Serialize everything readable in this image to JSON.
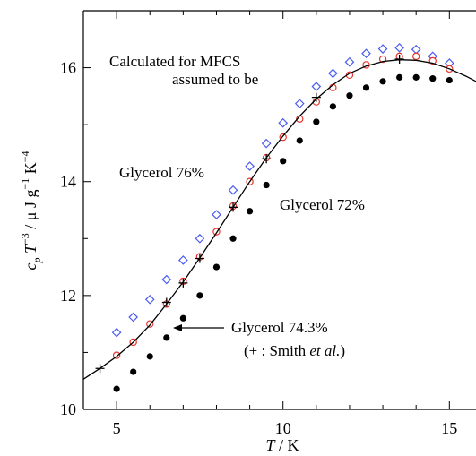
{
  "chart_data": {
    "type": "scatter",
    "xlabel_parts": [
      "T",
      " / K"
    ],
    "ylabel_parts": [
      "c",
      "p",
      " T",
      "−3",
      " / μ J g",
      "−1",
      " K",
      "−4"
    ],
    "annotations": [
      "Calculated for MFCS",
      "assumed to be",
      "Glycerol 76%",
      "Glycerol 72%",
      "Glycerol 74.3%",
      "(+ : Smith ",
      "et al.",
      ")"
    ],
    "xlim": [
      4,
      15.8
    ],
    "ylim": [
      10,
      17
    ],
    "xticks": [
      5,
      10,
      15
    ],
    "yticks": [
      10,
      12,
      14,
      16
    ],
    "xticks_minor": [
      6,
      7,
      8,
      9,
      11,
      12,
      13,
      14
    ],
    "yticks_minor": [
      11,
      13,
      15
    ],
    "series": [
      {
        "marker": "diamond",
        "color": "#4a5cf0",
        "x": [
          5,
          5.5,
          6,
          6.5,
          7,
          7.5,
          8,
          8.5,
          9,
          9.5,
          10,
          10.5,
          11,
          11.5,
          12,
          12.5,
          13,
          13.5,
          14,
          14.5,
          15
        ],
        "values": [
          11.35,
          11.62,
          11.93,
          12.28,
          12.62,
          13.0,
          13.42,
          13.85,
          14.27,
          14.67,
          15.03,
          15.37,
          15.67,
          15.9,
          16.1,
          16.25,
          16.33,
          16.35,
          16.32,
          16.2,
          16.08
        ]
      },
      {
        "marker": "circle-open",
        "color": "#e8332c",
        "x": [
          5,
          5.5,
          6,
          6.5,
          7,
          7.5,
          8,
          8.5,
          9,
          9.5,
          10,
          10.5,
          11,
          11.5,
          12,
          12.5,
          13,
          13.5,
          14,
          14.5,
          15
        ],
        "values": [
          10.95,
          11.18,
          11.5,
          11.85,
          12.25,
          12.68,
          13.12,
          13.57,
          14.0,
          14.42,
          14.78,
          15.1,
          15.4,
          15.65,
          15.87,
          16.05,
          16.15,
          16.2,
          16.2,
          16.12,
          15.98
        ]
      },
      {
        "marker": "circle-filled",
        "color": "#000000",
        "x": [
          5,
          5.5,
          6,
          6.5,
          7,
          7.5,
          8,
          8.5,
          9,
          9.5,
          10,
          10.5,
          11,
          11.5,
          12,
          12.5,
          13,
          13.5,
          14,
          14.5,
          15
        ],
        "values": [
          10.36,
          10.66,
          10.93,
          11.26,
          11.6,
          12.0,
          12.5,
          13.0,
          13.48,
          13.94,
          14.36,
          14.72,
          15.05,
          15.32,
          15.51,
          15.65,
          15.76,
          15.83,
          15.83,
          15.81,
          15.78
        ]
      },
      {
        "marker": "plus",
        "color": "#000000",
        "x": [
          4.5,
          6.5,
          7,
          7.5,
          8.5,
          9.5,
          11,
          13.5
        ],
        "values": [
          10.72,
          11.88,
          12.22,
          12.65,
          13.55,
          14.4,
          15.48,
          16.15
        ]
      },
      {
        "marker": "line",
        "color": "#000000",
        "x": [
          4,
          4.5,
          5,
          5.5,
          6,
          6.5,
          7,
          7.5,
          8,
          8.5,
          9,
          9.5,
          10,
          10.5,
          11,
          11.5,
          12,
          12.5,
          13,
          13.5,
          14,
          14.5,
          15,
          15.5,
          15.8
        ],
        "values": [
          10.53,
          10.72,
          10.93,
          11.18,
          11.48,
          11.85,
          12.24,
          12.66,
          13.1,
          13.55,
          14.0,
          14.42,
          14.8,
          15.15,
          15.45,
          15.7,
          15.9,
          16.03,
          16.11,
          16.14,
          16.13,
          16.08,
          15.98,
          15.85,
          15.76
        ]
      }
    ]
  }
}
